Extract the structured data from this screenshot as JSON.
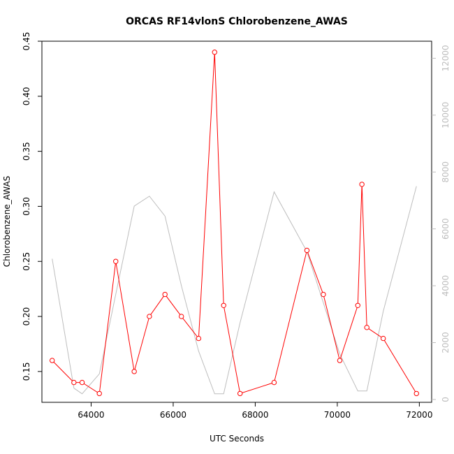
{
  "chart_data": {
    "type": "line",
    "title": "ORCAS RF14vlonS Chlorobenzene_AWAS",
    "xlabel": "UTC Seconds",
    "ylabel": "Chlorobenzene_AWAS",
    "xlim": [
      62800,
      72300
    ],
    "ylim": [
      0.122,
      0.45
    ],
    "y2lim": [
      -100,
      12600
    ],
    "x_ticks": [
      64000,
      66000,
      68000,
      70000,
      72000
    ],
    "y_ticks": [
      0.15,
      0.2,
      0.25,
      0.3,
      0.35,
      0.4,
      0.45
    ],
    "y2_ticks": [
      0,
      2000,
      4000,
      6000,
      8000,
      10000,
      12000
    ],
    "grid": false,
    "series": [
      {
        "color": "#ff0000",
        "marker": "open-circle",
        "x": [
          63050,
          63580,
          63780,
          64200,
          64600,
          65050,
          65420,
          65800,
          66200,
          66620,
          67010,
          67230,
          67630,
          68460,
          69260,
          69660,
          70060,
          70500,
          70600,
          70720,
          71120,
          71930
        ],
        "y": [
          0.16,
          0.14,
          0.14,
          0.13,
          0.25,
          0.15,
          0.2,
          0.22,
          0.2,
          0.18,
          0.44,
          0.21,
          0.13,
          0.14,
          0.26,
          0.22,
          0.16,
          0.21,
          0.32,
          0.19,
          0.18,
          0.13
        ]
      },
      {
        "color": "#bdbdbd",
        "axis": "right",
        "x": [
          63050,
          63580,
          63780,
          64200,
          64600,
          65050,
          65420,
          65800,
          66200,
          66620,
          67010,
          67230,
          67630,
          68460,
          69260,
          69660,
          70060,
          70500,
          70720,
          71120,
          71930
        ],
        "y": [
          4950,
          400,
          200,
          900,
          3700,
          6800,
          7150,
          6450,
          4000,
          1700,
          200,
          200,
          2700,
          7300,
          5200,
          3400,
          1600,
          300,
          300,
          3100,
          7500
        ]
      }
    ]
  }
}
